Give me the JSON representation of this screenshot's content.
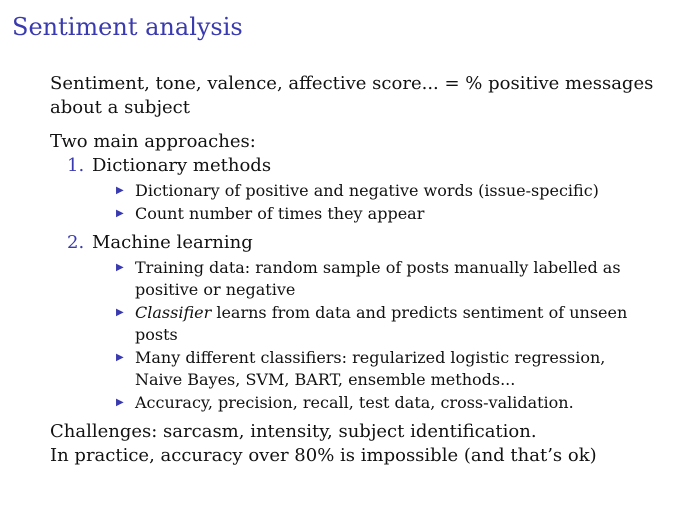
{
  "slide": {
    "title": "Sentiment analysis",
    "intro": "Sentiment, tone, valence, affective score... = % positive messages about a subject",
    "approaches_heading": "Two main approaches:",
    "approaches": [
      {
        "number": "1.",
        "label": "Dictionary methods",
        "bullets": [
          "Dictionary of positive and negative words (issue-specific)",
          "Count number of times they appear"
        ]
      },
      {
        "number": "2.",
        "label": "Machine learning",
        "bullets": [
          "Training data: random sample of posts manually labelled as positive or negative",
          "learns from data and predicts sentiment of unseen posts",
          "Many different classifiers: regularized logistic regression, Naive Bayes, SVM, BART, ensemble methods...",
          "Accuracy, precision, recall, test data, cross-validation."
        ],
        "emphasis_word": "Classifier"
      }
    ],
    "challenges": "Challenges: sarcasm, intensity, subject identification.",
    "practice": "In practice, accuracy over 80% is impossible (and that’s ok)"
  },
  "colors": {
    "accent": "#3a3ab0",
    "text": "#111111",
    "background": "#ffffff"
  },
  "icons": {
    "bullet": "triangle-bullet-icon"
  }
}
